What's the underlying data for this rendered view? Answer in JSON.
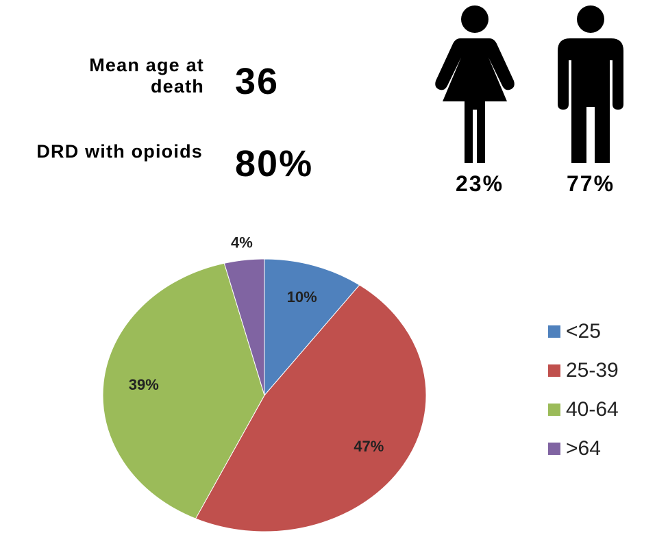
{
  "stats": [
    {
      "label": "Mean age at death",
      "value": "36"
    },
    {
      "label": "DRD with opioids",
      "value": "80%"
    }
  ],
  "gender": {
    "female": "23%",
    "male": "77%"
  },
  "chart_data": {
    "type": "pie",
    "categories": [
      "<25",
      "25-39",
      "40-64",
      ">64"
    ],
    "values": [
      10,
      47,
      39,
      4
    ],
    "value_labels": [
      "10%",
      "47%",
      "39%",
      "4%"
    ],
    "colors": [
      "#4f81bd",
      "#c0504d",
      "#9bbb59",
      "#8064a2"
    ],
    "legend": "right"
  }
}
